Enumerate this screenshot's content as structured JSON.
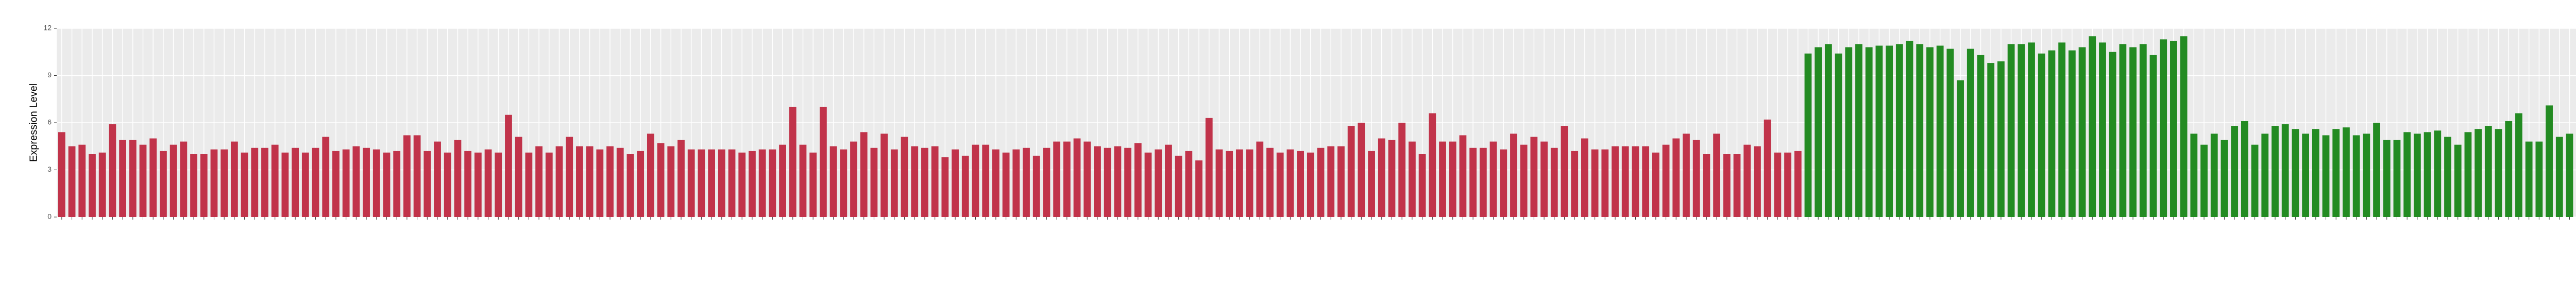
{
  "chart_data": {
    "type": "bar",
    "y_label": "Expression Level",
    "categories": [
      null,
      null,
      null,
      null,
      null,
      null,
      null,
      null,
      null,
      null,
      null,
      null,
      null,
      null,
      null,
      null,
      null,
      null,
      null,
      null,
      null,
      null,
      null,
      null,
      null,
      null,
      null,
      null,
      null,
      null,
      null,
      null,
      null,
      null,
      null,
      null,
      null,
      null,
      null,
      null,
      null,
      null,
      null,
      null,
      null,
      null,
      null,
      null,
      null,
      null,
      null,
      null,
      null,
      null,
      null,
      null,
      null,
      null,
      null,
      null,
      null,
      null,
      null,
      null,
      null,
      null,
      null,
      null,
      null,
      null,
      null,
      null,
      null,
      null,
      null,
      null,
      null,
      null,
      null,
      null,
      null,
      null,
      null,
      null,
      null,
      null,
      null,
      null,
      null,
      null,
      null,
      null,
      null,
      null,
      null,
      null,
      null,
      null,
      null,
      null,
      null,
      null,
      null,
      null,
      null,
      null,
      null,
      null,
      null,
      null,
      null,
      null,
      null,
      null,
      null,
      null,
      null,
      null,
      null,
      null,
      null,
      null,
      null,
      null,
      null,
      null,
      null,
      null,
      null,
      null,
      null,
      null,
      null,
      null,
      null,
      null,
      null,
      null,
      null,
      null,
      null,
      null,
      null,
      null,
      null,
      null,
      null,
      null,
      null,
      null,
      null,
      null,
      null,
      null,
      null,
      null,
      null,
      null,
      null,
      null,
      null,
      null,
      null,
      null,
      null,
      null,
      null,
      null,
      null,
      null,
      null,
      null,
      null,
      null,
      null,
      null,
      null,
      null,
      null,
      null,
      null,
      null,
      null,
      null,
      null,
      null,
      null,
      null,
      null,
      null,
      null,
      null,
      null,
      null,
      null,
      null,
      null,
      null,
      null,
      null,
      null,
      null,
      null,
      null,
      null,
      null,
      null,
      null,
      null,
      null,
      null,
      null,
      null,
      null,
      null,
      null,
      null,
      null,
      null,
      null,
      null,
      null,
      null,
      null,
      null,
      null,
      null,
      null,
      null,
      null,
      null,
      null,
      null,
      null,
      null,
      null,
      null,
      null,
      null,
      null,
      null,
      null,
      null,
      null,
      null,
      null,
      null,
      null,
      null,
      null,
      null,
      null,
      null,
      null,
      null,
      null
    ],
    "values": [
      5.4,
      4.5,
      4.6,
      4.0,
      4.1,
      5.9,
      4.9,
      4.9,
      4.6,
      5.0,
      4.2,
      4.6,
      4.8,
      4.0,
      4.0,
      4.3,
      4.3,
      4.8,
      4.1,
      4.4,
      4.4,
      4.6,
      4.1,
      4.4,
      4.1,
      4.4,
      5.1,
      4.2,
      4.3,
      4.5,
      4.4,
      4.3,
      4.1,
      4.2,
      5.2,
      5.2,
      4.2,
      4.8,
      4.1,
      4.9,
      4.2,
      4.1,
      4.3,
      4.1,
      6.5,
      5.1,
      4.1,
      4.5,
      4.1,
      4.5,
      5.1,
      4.5,
      4.5,
      4.3,
      4.5,
      4.4,
      4.0,
      4.2,
      5.3,
      4.7,
      4.5,
      4.9,
      4.3,
      4.3,
      4.3,
      4.3,
      4.3,
      4.1,
      4.2,
      4.3,
      4.3,
      4.6,
      7.0,
      4.6,
      4.1,
      7.0,
      4.5,
      4.3,
      4.8,
      5.4,
      4.4,
      5.3,
      4.3,
      5.1,
      4.5,
      4.4,
      4.5,
      3.8,
      4.3,
      3.9,
      4.6,
      4.6,
      4.3,
      4.1,
      4.3,
      4.4,
      3.9,
      4.4,
      4.8,
      4.8,
      5.0,
      4.8,
      4.5,
      4.4,
      4.5,
      4.4,
      4.7,
      4.1,
      4.3,
      4.6,
      3.9,
      4.2,
      3.6,
      6.3,
      4.3,
      4.2,
      4.3,
      4.3,
      4.8,
      4.4,
      4.1,
      4.3,
      4.2,
      4.1,
      4.4,
      4.5,
      4.5,
      5.8,
      6.0,
      4.2,
      5.0,
      4.9,
      6.0,
      4.8,
      4.0,
      6.6,
      4.8,
      4.8,
      5.2,
      4.4,
      4.4,
      4.8,
      4.3,
      5.3,
      4.6,
      5.1,
      4.8,
      4.4,
      5.8,
      4.2,
      5.0,
      4.3,
      4.3,
      4.5,
      4.5,
      4.5,
      4.5,
      4.1,
      4.6,
      5.0,
      5.3,
      4.9,
      4.0,
      5.3,
      4.0,
      4.0,
      4.6,
      4.5,
      6.2,
      4.1,
      4.1,
      4.2,
      10.4,
      10.8,
      11.0,
      10.4,
      10.8,
      11.0,
      10.8,
      10.9,
      10.9,
      11.0,
      11.2,
      11.0,
      10.8,
      10.9,
      10.7,
      8.7,
      10.7,
      10.3,
      9.8,
      9.9,
      11.0,
      11.0,
      11.1,
      10.4,
      10.6,
      11.1,
      10.6,
      10.8,
      11.5,
      11.1,
      10.5,
      11.0,
      10.8,
      11.0,
      10.3,
      11.3,
      11.2,
      11.5,
      5.3,
      4.6,
      5.3,
      4.9,
      5.8,
      6.1,
      4.6,
      5.3,
      5.8,
      5.9,
      5.6,
      5.3,
      5.6,
      5.2,
      5.6,
      5.7,
      5.2,
      5.3,
      6.0,
      4.9,
      4.9,
      5.4,
      5.3,
      5.4,
      5.5,
      5.1,
      4.6,
      5.4,
      5.6,
      5.8,
      5.6,
      6.1,
      6.6,
      4.8,
      4.8,
      7.1,
      5.1,
      5.3,
      5.3,
      4.7,
      5.3,
      5.1,
      5.1,
      5.5,
      4.9,
      5.3
    ],
    "colors": [
      "#c1334a",
      "#c1334a",
      "#c1334a",
      "#c1334a",
      "#c1334a",
      "#c1334a",
      "#c1334a",
      "#c1334a",
      "#c1334a",
      "#c1334a",
      "#c1334a",
      "#c1334a",
      "#c1334a",
      "#c1334a",
      "#c1334a",
      "#c1334a",
      "#c1334a",
      "#c1334a",
      "#c1334a",
      "#c1334a",
      "#c1334a",
      "#c1334a",
      "#c1334a",
      "#c1334a",
      "#c1334a",
      "#c1334a",
      "#c1334a",
      "#c1334a",
      "#c1334a",
      "#c1334a",
      "#c1334a",
      "#c1334a",
      "#c1334a",
      "#c1334a",
      "#c1334a",
      "#c1334a",
      "#c1334a",
      "#c1334a",
      "#c1334a",
      "#c1334a",
      "#c1334a",
      "#c1334a",
      "#c1334a",
      "#c1334a",
      "#c1334a",
      "#c1334a",
      "#c1334a",
      "#c1334a",
      "#c1334a",
      "#c1334a",
      "#c1334a",
      "#c1334a",
      "#c1334a",
      "#c1334a",
      "#c1334a",
      "#c1334a",
      "#c1334a",
      "#c1334a",
      "#c1334a",
      "#c1334a",
      "#c1334a",
      "#c1334a",
      "#c1334a",
      "#c1334a",
      "#c1334a",
      "#c1334a",
      "#c1334a",
      "#c1334a",
      "#c1334a",
      "#c1334a",
      "#c1334a",
      "#c1334a",
      "#c1334a",
      "#c1334a",
      "#c1334a",
      "#c1334a",
      "#c1334a",
      "#c1334a",
      "#c1334a",
      "#c1334a",
      "#c1334a",
      "#c1334a",
      "#c1334a",
      "#c1334a",
      "#c1334a",
      "#c1334a",
      "#c1334a",
      "#c1334a",
      "#c1334a",
      "#c1334a",
      "#c1334a",
      "#c1334a",
      "#c1334a",
      "#c1334a",
      "#c1334a",
      "#c1334a",
      "#c1334a",
      "#c1334a",
      "#c1334a",
      "#c1334a",
      "#c1334a",
      "#c1334a",
      "#c1334a",
      "#c1334a",
      "#c1334a",
      "#c1334a",
      "#c1334a",
      "#c1334a",
      "#c1334a",
      "#c1334a",
      "#c1334a",
      "#c1334a",
      "#c1334a",
      "#c1334a",
      "#c1334a",
      "#c1334a",
      "#c1334a",
      "#c1334a",
      "#c1334a",
      "#c1334a",
      "#c1334a",
      "#c1334a",
      "#c1334a",
      "#c1334a",
      "#c1334a",
      "#c1334a",
      "#c1334a",
      "#c1334a",
      "#c1334a",
      "#c1334a",
      "#c1334a",
      "#c1334a",
      "#c1334a",
      "#c1334a",
      "#c1334a",
      "#c1334a",
      "#c1334a",
      "#c1334a",
      "#c1334a",
      "#c1334a",
      "#c1334a",
      "#c1334a",
      "#c1334a",
      "#c1334a",
      "#c1334a",
      "#c1334a",
      "#c1334a",
      "#c1334a",
      "#c1334a",
      "#c1334a",
      "#c1334a",
      "#c1334a",
      "#c1334a",
      "#c1334a",
      "#c1334a",
      "#c1334a",
      "#c1334a",
      "#c1334a",
      "#c1334a",
      "#c1334a",
      "#c1334a",
      "#c1334a",
      "#c1334a",
      "#c1334a",
      "#c1334a",
      "#c1334a",
      "#c1334a",
      "#c1334a",
      "#c1334a",
      "#c1334a",
      "#c1334a",
      "#c1334a",
      "#238b22",
      "#238b22",
      "#238b22",
      "#238b22",
      "#238b22",
      "#238b22",
      "#238b22",
      "#238b22",
      "#238b22",
      "#238b22",
      "#238b22",
      "#238b22",
      "#238b22",
      "#238b22",
      "#238b22",
      "#238b22",
      "#238b22",
      "#238b22",
      "#238b22",
      "#238b22",
      "#238b22",
      "#238b22",
      "#238b22",
      "#238b22",
      "#238b22",
      "#238b22",
      "#238b22",
      "#238b22",
      "#238b22",
      "#238b22",
      "#238b22",
      "#238b22",
      "#238b22",
      "#238b22",
      "#238b22",
      "#238b22",
      "#238b22",
      "#238b22",
      "#238b22",
      "#238b22",
      "#238b22",
      "#238b22",
      "#238b22",
      "#238b22",
      "#238b22",
      "#238b22",
      "#238b22",
      "#238b22",
      "#238b22",
      "#238b22",
      "#238b22",
      "#238b22",
      "#238b22",
      "#238b22",
      "#238b22",
      "#238b22",
      "#238b22",
      "#238b22",
      "#238b22",
      "#238b22",
      "#238b22",
      "#238b22",
      "#238b22",
      "#238b22",
      "#238b22",
      "#238b22",
      "#238b22",
      "#238b22",
      "#238b22",
      "#238b22",
      "#238b22",
      "#238b22",
      "#238b22",
      "#238b22",
      "#238b22",
      "#238b22",
      "#238b22",
      "#238b22",
      "#238b22",
      "#238b22",
      "#238b22",
      "#238b22",
      "#238b22",
      "#238b22"
    ],
    "ylim": [
      0,
      12
    ],
    "yticks": [
      0,
      3,
      6,
      9,
      12
    ],
    "grid": true
  }
}
